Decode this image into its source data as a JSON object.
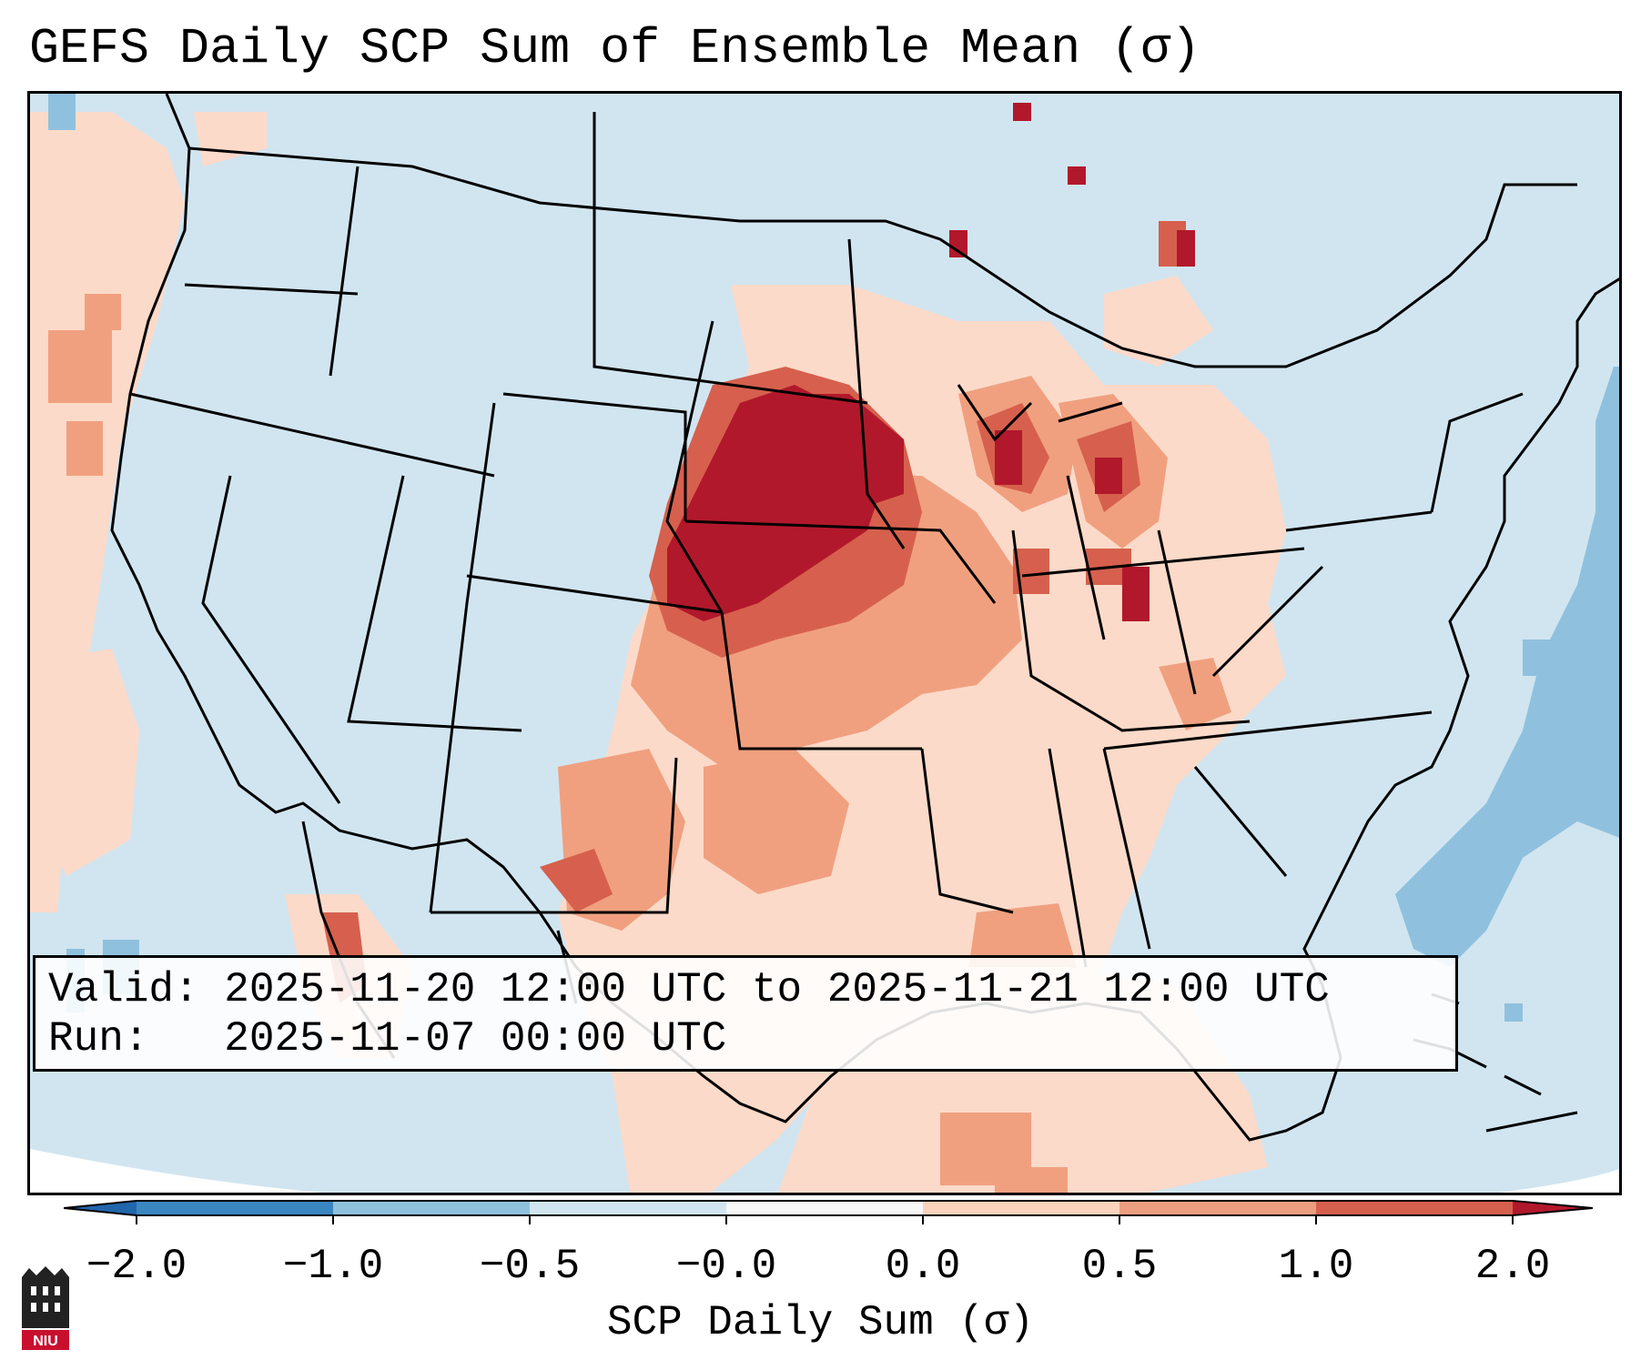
{
  "title": "GEFS Daily SCP Sum of Ensemble Mean (σ)",
  "info": {
    "valid_label": "Valid:",
    "valid_value": "2025-11-20 12:00 UTC to 2025-11-21 12:00 UTC",
    "run_label": "Run:",
    "run_value": "2025-11-07 00:00 UTC"
  },
  "colorbar": {
    "label": "SCP Daily Sum (σ)",
    "ticks": [
      "−2.0",
      "−1.0",
      "−0.5",
      "−0.0",
      "0.0",
      "0.5",
      "1.0",
      "2.0"
    ],
    "bin_colors": [
      "#3a86c0",
      "#8fc1de",
      "#d1e5f0",
      "#f7f7f7",
      "#fbd3bd",
      "#ee9e80",
      "#d6604d",
      "#b2182b"
    ],
    "under_color": "#2166ac",
    "over_color": "#b2182b"
  },
  "colors": {
    "background_neutral": "#d1e5f0",
    "light_warm": "#fcdac9",
    "mid_warm": "#f0a07f",
    "strong_warm": "#d6604d",
    "max_warm": "#b2182b",
    "cool_blue": "#8fc1de"
  },
  "logo": {
    "text": "NIU"
  }
}
